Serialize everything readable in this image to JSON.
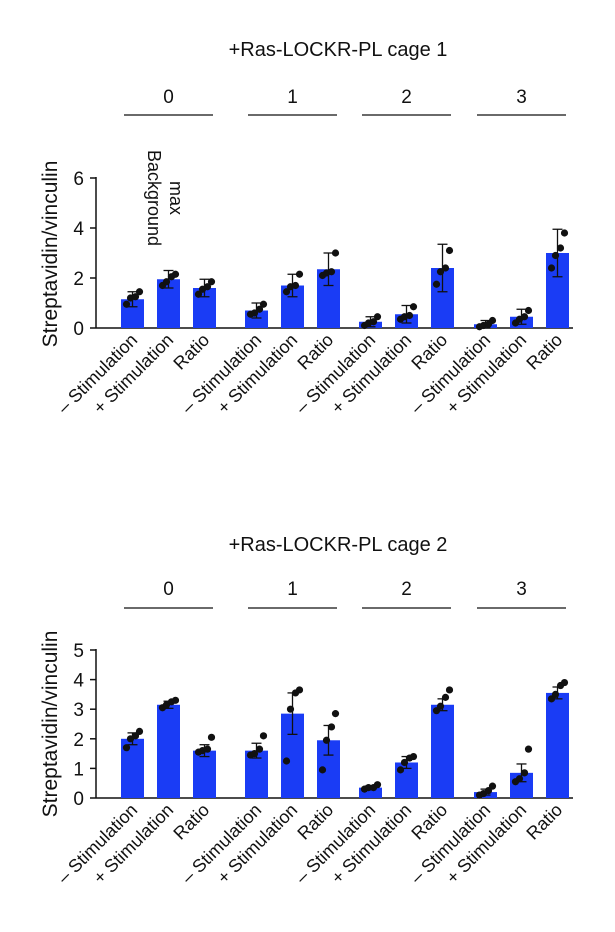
{
  "chart_data": [
    {
      "type": "bar",
      "title": "+Ras-LOCKR-PL cage 1",
      "ylabel": "Streptavidin/vinculin",
      "ylim": [
        0,
        6
      ],
      "yticks": [
        0,
        2,
        4,
        6
      ],
      "group_labels": [
        "0",
        "1",
        "2",
        "3"
      ],
      "categories": [
        "– Stimulation",
        "+ Stimulation",
        "Ratio"
      ],
      "annotation": [
        "Background",
        "max"
      ],
      "bar_color": "#1a3cf5",
      "groups": [
        {
          "label": "0",
          "values": [
            1.15,
            1.95,
            1.6
          ],
          "errors": [
            0.3,
            0.35,
            0.35
          ],
          "points": [
            [
              0.95,
              1.2,
              1.25,
              1.45
            ],
            [
              1.7,
              1.85,
              2.05,
              2.15
            ],
            [
              1.35,
              1.55,
              1.65,
              1.85
            ]
          ]
        },
        {
          "label": "1",
          "values": [
            0.7,
            1.7,
            2.35
          ],
          "errors": [
            0.3,
            0.45,
            0.65
          ],
          "points": [
            [
              0.55,
              0.6,
              0.75,
              0.95
            ],
            [
              1.45,
              1.65,
              1.7,
              2.15
            ],
            [
              2.1,
              2.2,
              2.25,
              3.0
            ]
          ]
        },
        {
          "label": "2",
          "values": [
            0.25,
            0.55,
            2.4
          ],
          "errors": [
            0.2,
            0.35,
            0.95
          ],
          "points": [
            [
              0.1,
              0.2,
              0.25,
              0.45
            ],
            [
              0.35,
              0.45,
              0.5,
              0.85
            ],
            [
              1.75,
              2.25,
              2.4,
              3.1
            ]
          ]
        },
        {
          "label": "3",
          "values": [
            0.15,
            0.45,
            3.0
          ],
          "errors": [
            0.15,
            0.3,
            0.95
          ],
          "points": [
            [
              0.05,
              0.1,
              0.15,
              0.3
            ],
            [
              0.2,
              0.35,
              0.45,
              0.7
            ],
            [
              2.4,
              2.9,
              3.2,
              3.8
            ]
          ]
        }
      ]
    },
    {
      "type": "bar",
      "title": "+Ras-LOCKR-PL cage 2",
      "ylabel": "Streptavidin/vinculin",
      "ylim": [
        0,
        5
      ],
      "yticks": [
        0,
        1,
        2,
        3,
        4,
        5
      ],
      "group_labels": [
        "0",
        "1",
        "2",
        "3"
      ],
      "categories": [
        "– Stimulation",
        "+ Stimulation",
        "Ratio"
      ],
      "bar_color": "#1a3cf5",
      "groups": [
        {
          "label": "0",
          "values": [
            2.0,
            3.15,
            1.6
          ],
          "errors": [
            0.2,
            0.12,
            0.2
          ],
          "points": [
            [
              1.7,
              2.0,
              2.1,
              2.25
            ],
            [
              3.05,
              3.15,
              3.25,
              3.3
            ],
            [
              1.55,
              1.6,
              1.65,
              2.05
            ]
          ]
        },
        {
          "label": "1",
          "values": [
            1.6,
            2.85,
            1.95
          ],
          "errors": [
            0.25,
            0.7,
            0.5
          ],
          "points": [
            [
              1.45,
              1.5,
              1.65,
              2.1
            ],
            [
              1.25,
              3.0,
              3.55,
              3.65
            ],
            [
              0.95,
              1.95,
              2.4,
              2.85
            ]
          ]
        },
        {
          "label": "2",
          "values": [
            0.35,
            1.2,
            3.15
          ],
          "errors": [
            0.07,
            0.2,
            0.2
          ],
          "points": [
            [
              0.3,
              0.35,
              0.35,
              0.45
            ],
            [
              0.95,
              1.2,
              1.35,
              1.4
            ],
            [
              2.95,
              3.1,
              3.4,
              3.65
            ]
          ]
        },
        {
          "label": "3",
          "values": [
            0.2,
            0.85,
            3.55
          ],
          "errors": [
            0.1,
            0.3,
            0.2
          ],
          "points": [
            [
              0.1,
              0.15,
              0.25,
              0.4
            ],
            [
              0.55,
              0.65,
              0.85,
              1.65
            ],
            [
              3.35,
              3.5,
              3.8,
              3.9
            ]
          ]
        }
      ]
    }
  ]
}
